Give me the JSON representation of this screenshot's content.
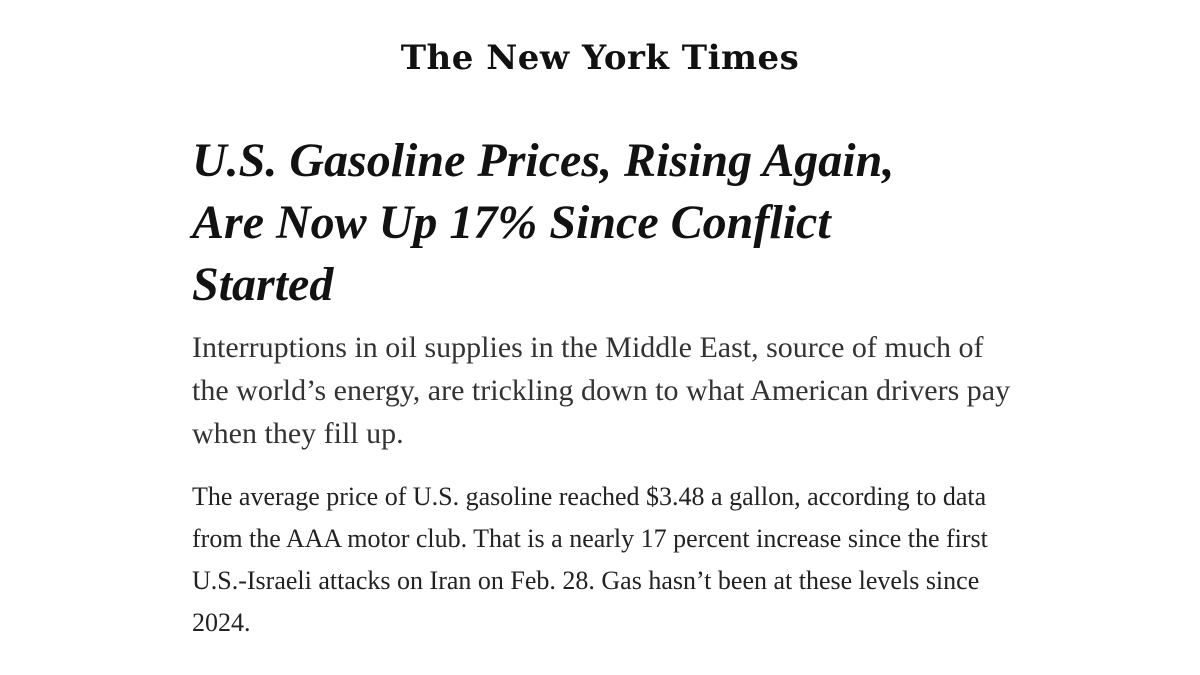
{
  "masthead": {
    "logo_text": "The New York Times"
  },
  "article": {
    "headline": "U.S. Gasoline Prices, Rising Again, Are Now Up 17% Since Conflict Started",
    "summary": "Interruptions in oil supplies in the Middle East, source of much of the world’s energy, are trickling down to what American drivers pay when they fill up.",
    "body": "The average price of U.S. gasoline reached $3.48 a gallon, according to data from the AAA motor club. That is a nearly 17 percent increase since the first U.S.-Israeli attacks on Iran on Feb. 28. Gas hasn’t been at these levels since 2024."
  }
}
